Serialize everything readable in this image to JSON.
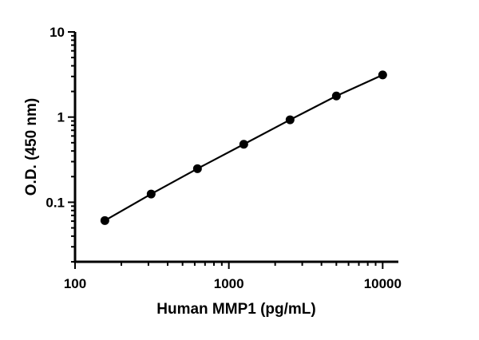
{
  "chart_data": {
    "type": "line",
    "title": "",
    "xlabel": "Human MMP1 (pg/mL)",
    "ylabel": "O.D. (450 nm)",
    "xscale": "log",
    "yscale": "log",
    "xlim": [
      100,
      12650
    ],
    "ylim": [
      0.02,
      10
    ],
    "xticks": [
      100,
      1000,
      10000
    ],
    "xtick_labels": [
      "100",
      "1000",
      "10000"
    ],
    "yticks": [
      0.1,
      1,
      10
    ],
    "ytick_labels": [
      "0.1",
      "1",
      "10"
    ],
    "grid": false,
    "legend": "none",
    "series": [
      {
        "x": [
          156.25,
          312.5,
          625,
          1250,
          2500,
          5000,
          10000
        ],
        "y": [
          0.061,
          0.125,
          0.248,
          0.48,
          0.93,
          1.77,
          3.13
        ],
        "marker": "circle",
        "color": "#000000"
      }
    ]
  }
}
